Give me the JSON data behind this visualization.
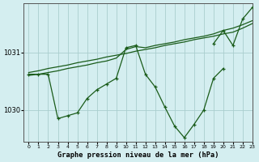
{
  "background_color": "#d4eef0",
  "grid_color": "#aacece",
  "line_color": "#1a5c1a",
  "title": "Graphe pression niveau de la mer (hPa)",
  "xlim": [
    -0.5,
    23
  ],
  "ylim": [
    1029.45,
    1031.85
  ],
  "yticks": [
    1030,
    1031
  ],
  "xticks": [
    0,
    1,
    2,
    3,
    4,
    5,
    6,
    7,
    8,
    9,
    10,
    11,
    12,
    13,
    14,
    15,
    16,
    17,
    18,
    19,
    20,
    21,
    22,
    23
  ],
  "series": [
    {
      "x": [
        0,
        1,
        2,
        3,
        4,
        5,
        6,
        7,
        8,
        9,
        10,
        11,
        12,
        13,
        14,
        15,
        16,
        17,
        18,
        19,
        20,
        21,
        22,
        23
      ],
      "y": [
        1030.65,
        1030.68,
        1030.72,
        1030.75,
        1030.78,
        1030.82,
        1030.85,
        1030.88,
        1030.92,
        1030.95,
        1030.98,
        1031.02,
        1031.05,
        1031.08,
        1031.12,
        1031.15,
        1031.18,
        1031.22,
        1031.25,
        1031.28,
        1031.32,
        1031.35,
        1031.42,
        1031.5
      ],
      "has_markers": false
    },
    {
      "x": [
        0,
        1,
        2,
        3,
        4,
        5,
        6,
        7,
        8,
        9,
        10,
        11,
        12,
        13,
        14,
        15,
        16,
        17,
        18,
        19,
        20,
        21,
        22,
        23
      ],
      "y": [
        1030.6,
        1030.62,
        1030.65,
        1030.68,
        1030.72,
        1030.75,
        1030.78,
        1030.82,
        1030.85,
        1030.9,
        1031.05,
        1031.1,
        1031.08,
        1031.12,
        1031.15,
        1031.18,
        1031.22,
        1031.25,
        1031.28,
        1031.32,
        1031.38,
        1031.42,
        1031.48,
        1031.55
      ],
      "has_markers": false
    },
    {
      "x": [
        0,
        1,
        2,
        3,
        4,
        5,
        6,
        7,
        8,
        9,
        10,
        11,
        12,
        13,
        14,
        15,
        16,
        17,
        18,
        19,
        20
      ],
      "y": [
        1030.62,
        1030.62,
        1030.62,
        1029.85,
        1029.9,
        1029.95,
        1030.2,
        1030.35,
        1030.45,
        1030.55,
        1031.08,
        1031.12,
        1030.62,
        1030.4,
        1030.05,
        1029.72,
        1029.52,
        1029.75,
        1030.0,
        1030.55,
        1030.72
      ],
      "has_markers": true
    },
    {
      "x": [
        19,
        20,
        21,
        22,
        23
      ],
      "y": [
        1031.15,
        1031.38,
        1031.12,
        1031.58,
        1031.78
      ],
      "has_markers": true
    }
  ]
}
